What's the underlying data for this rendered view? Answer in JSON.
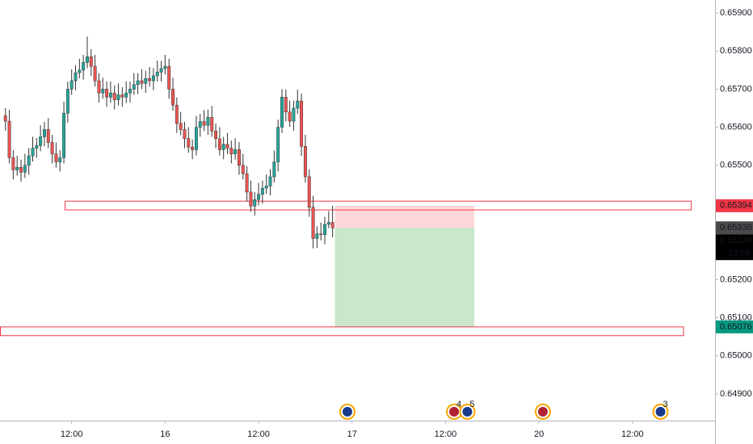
{
  "chart_data": {
    "type": "candlestick",
    "x": [
      -20.5,
      -20,
      -19.5,
      -19,
      -18.5,
      -18,
      -17.5,
      -17,
      -16.5,
      -16,
      -15.5,
      -15,
      -14.5,
      -14,
      -13.5,
      -13,
      -12.5,
      -12,
      -11.5,
      -11,
      -10.5,
      -10,
      -9.5,
      -9,
      -8.5,
      -8,
      -7.5,
      -7,
      -6.5,
      -6,
      -5.5,
      -5,
      -4.5,
      -4,
      -3.5,
      -3,
      -2.5,
      -2,
      -1.5,
      -1,
      -0.5,
      0,
      0.5,
      1,
      1.5,
      2,
      2.5,
      3,
      3.5,
      4,
      4.5,
      5,
      5.5,
      6,
      6.5,
      7,
      7.5,
      8,
      8.5,
      9,
      9.5,
      10,
      10.5,
      11,
      11.5,
      12,
      12.5,
      13,
      13.5,
      14,
      14.5,
      15,
      15.5,
      16,
      16.5,
      17,
      17.5,
      18,
      18.5,
      19,
      19.5,
      20,
      20.5,
      21,
      21.5
    ],
    "open": [
      0.6563,
      0.65616,
      0.6552,
      0.65488,
      0.65495,
      0.65482,
      0.655,
      0.65525,
      0.65545,
      0.65552,
      0.65575,
      0.65594,
      0.6556,
      0.6553,
      0.65509,
      0.6552,
      0.65637,
      0.657,
      0.65722,
      0.65743,
      0.6575,
      0.6577,
      0.65785,
      0.6576,
      0.65722,
      0.6569,
      0.657,
      0.65679,
      0.6569,
      0.65672,
      0.65685,
      0.65679,
      0.6569,
      0.657,
      0.65712,
      0.65722,
      0.65715,
      0.65728,
      0.65722,
      0.65735,
      0.65745,
      0.65754,
      0.6576,
      0.657,
      0.65658,
      0.6561,
      0.65594,
      0.6557,
      0.65548,
      0.65541,
      0.656,
      0.65615,
      0.65605,
      0.65626,
      0.6559,
      0.6557,
      0.65541,
      0.65555,
      0.65545,
      0.6553,
      0.65541,
      0.655,
      0.65478,
      0.6543,
      0.65393,
      0.6541,
      0.65424,
      0.6544,
      0.65446,
      0.6547,
      0.65509,
      0.656,
      0.65679,
      0.6564,
      0.65616,
      0.6565,
      0.65669,
      0.6555,
      0.6547,
      0.6539,
      0.65308,
      0.6532,
      0.65318,
      0.65345,
      0.6535
    ],
    "high": [
      0.6565,
      0.65646,
      0.6554,
      0.65525,
      0.65515,
      0.6553,
      0.65545,
      0.65575,
      0.65572,
      0.65605,
      0.65614,
      0.65624,
      0.6558,
      0.6556,
      0.6554,
      0.65667,
      0.6572,
      0.65752,
      0.65763,
      0.6578,
      0.6579,
      0.65838,
      0.65805,
      0.6579,
      0.65742,
      0.6573,
      0.6572,
      0.6572,
      0.6571,
      0.65715,
      0.65705,
      0.6572,
      0.6572,
      0.65742,
      0.65742,
      0.65752,
      0.65748,
      0.65758,
      0.65755,
      0.65775,
      0.65774,
      0.6579,
      0.6578,
      0.6573,
      0.65678,
      0.6564,
      0.65614,
      0.656,
      0.65568,
      0.6563,
      0.65635,
      0.65645,
      0.65646,
      0.65656,
      0.6561,
      0.656,
      0.65575,
      0.65585,
      0.65565,
      0.65571,
      0.65561,
      0.6553,
      0.65498,
      0.6546,
      0.6543,
      0.65454,
      0.6546,
      0.65476,
      0.6549,
      0.65539,
      0.6562,
      0.657,
      0.65699,
      0.6567,
      0.6567,
      0.65699,
      0.65689,
      0.6558,
      0.6549,
      0.6542,
      0.6534,
      0.6535,
      0.65365,
      0.6538,
      0.65394
    ],
    "low": [
      0.65591,
      0.65505,
      0.65463,
      0.65473,
      0.65457,
      0.65467,
      0.65475,
      0.6551,
      0.6552,
      0.65537,
      0.6555,
      0.65545,
      0.65505,
      0.65494,
      0.65484,
      0.65505,
      0.65612,
      0.65685,
      0.65697,
      0.65728,
      0.65725,
      0.65755,
      0.65735,
      0.65707,
      0.65665,
      0.65675,
      0.65654,
      0.65664,
      0.65647,
      0.65657,
      0.65654,
      0.65664,
      0.65665,
      0.65685,
      0.65687,
      0.657,
      0.6569,
      0.65707,
      0.65697,
      0.6572,
      0.6572,
      0.65739,
      0.65675,
      0.65643,
      0.65585,
      0.65579,
      0.65545,
      0.65533,
      0.65516,
      0.65526,
      0.65575,
      0.6559,
      0.6558,
      0.65575,
      0.65545,
      0.65526,
      0.65516,
      0.6553,
      0.65505,
      0.65515,
      0.65475,
      0.65463,
      0.65405,
      0.65378,
      0.65368,
      0.65395,
      0.65399,
      0.65425,
      0.65421,
      0.65455,
      0.65484,
      0.65585,
      0.65615,
      0.65601,
      0.65591,
      0.65635,
      0.65525,
      0.65455,
      0.65365,
      0.65282,
      0.65283,
      0.65303,
      0.65293,
      0.65335,
      0.65311
    ],
    "close": [
      0.65616,
      0.6552,
      0.65488,
      0.65495,
      0.65482,
      0.655,
      0.65525,
      0.65545,
      0.65552,
      0.65575,
      0.65594,
      0.6556,
      0.6553,
      0.65509,
      0.6552,
      0.65637,
      0.657,
      0.65722,
      0.65743,
      0.6575,
      0.6577,
      0.65785,
      0.6576,
      0.65722,
      0.6569,
      0.657,
      0.65679,
      0.6569,
      0.65672,
      0.65685,
      0.65679,
      0.6569,
      0.657,
      0.65712,
      0.65722,
      0.65715,
      0.65728,
      0.65722,
      0.65735,
      0.65745,
      0.65754,
      0.6576,
      0.657,
      0.65658,
      0.6561,
      0.65594,
      0.6557,
      0.65548,
      0.65541,
      0.656,
      0.65615,
      0.65605,
      0.65626,
      0.6559,
      0.6557,
      0.65541,
      0.65555,
      0.65545,
      0.6553,
      0.65541,
      0.655,
      0.65478,
      0.6543,
      0.65393,
      0.6541,
      0.65424,
      0.6544,
      0.65446,
      0.6547,
      0.65509,
      0.656,
      0.65679,
      0.6564,
      0.65616,
      0.6565,
      0.65669,
      0.6555,
      0.6547,
      0.6539,
      0.65308,
      0.6532,
      0.65318,
      0.65345,
      0.6535,
      0.65336
    ],
    "up_color": "#26a69a",
    "down_color": "#ef5350",
    "xlim": [
      -21.2,
      70.6
    ],
    "xticks": [
      {
        "value": -12,
        "label": "12:00"
      },
      {
        "value": 0,
        "label": "16"
      },
      {
        "value": 12,
        "label": "12:00"
      },
      {
        "value": 24,
        "label": "17"
      },
      {
        "value": 36,
        "label": "12:00"
      },
      {
        "value": 48,
        "label": "20"
      },
      {
        "value": 60,
        "label": "12:00"
      }
    ],
    "ylim": [
      0.6483,
      0.65934
    ],
    "yticks": [
      {
        "value": 0.659,
        "label": "0.65900"
      },
      {
        "value": 0.658,
        "label": "0.65800"
      },
      {
        "value": 0.657,
        "label": "0.65700"
      },
      {
        "value": 0.656,
        "label": "0.65600"
      },
      {
        "value": 0.655,
        "label": "0.65500"
      },
      {
        "value": 0.652,
        "label": "0.65200"
      },
      {
        "value": 0.651,
        "label": "0.65100"
      },
      {
        "value": 0.65,
        "label": "0.65000"
      },
      {
        "value": 0.649,
        "label": "0.64900"
      }
    ],
    "zones": [
      {
        "top": 0.65406,
        "bottom": 0.65383,
        "x0": -12.9,
        "x1": 67.5
      },
      {
        "top": 0.65076,
        "bottom": 0.65053,
        "x0": -21.2,
        "x1": 66.5
      }
    ],
    "position": {
      "entry": 0.65336,
      "stop": 0.65394,
      "target": 0.65076,
      "start": 21.8,
      "end": 39.7
    },
    "last_price": 0.65336,
    "countdown": "23:58",
    "events": [
      {
        "x": 23.4
      },
      {
        "x": 37.1,
        "label": "4"
      },
      {
        "x": 38.8,
        "label": "5"
      },
      {
        "x": 48.5
      },
      {
        "x": 63.6,
        "label": "3"
      }
    ]
  }
}
